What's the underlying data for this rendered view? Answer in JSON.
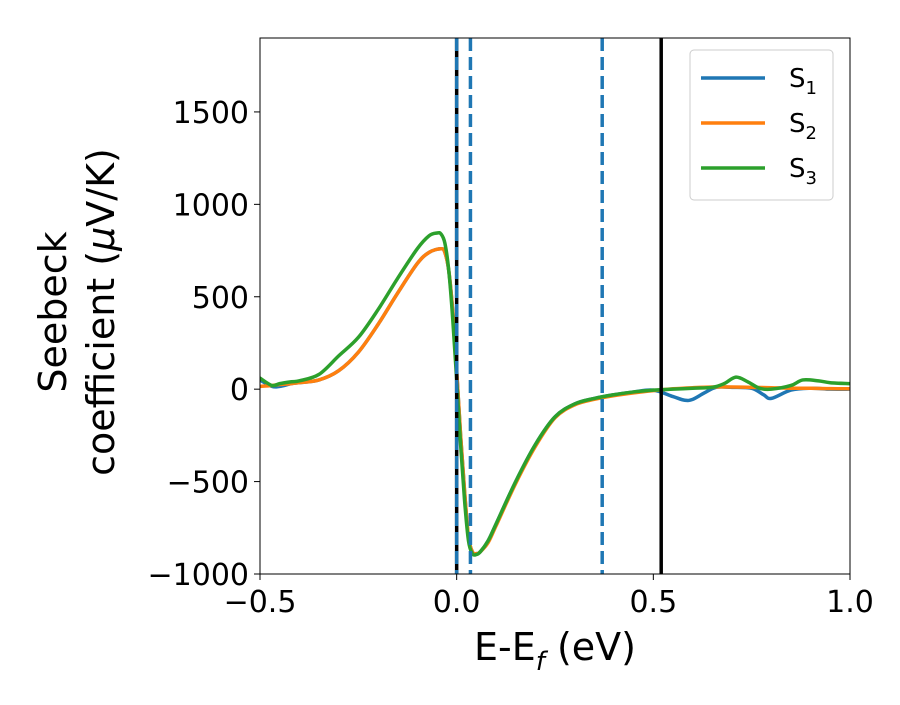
{
  "chart_data": {
    "type": "line",
    "title": "",
    "xlabel": "E-E",
    "xlabel_sub": "f",
    "xlabel_unit": " (eV)",
    "ylabel_line1": "Seebeck",
    "ylabel_line2_prefix": "coefficient  (",
    "ylabel_line2_mu": "μ",
    "ylabel_line2_suffix": "V/K)",
    "xlim": [
      -0.5,
      1.0
    ],
    "ylim": [
      -1000,
      1900
    ],
    "xticks": [
      -0.5,
      0.0,
      0.5,
      1.0
    ],
    "xtick_labels": [
      "−0.5",
      "0.0",
      "0.5",
      "1.0"
    ],
    "yticks": [
      -1000,
      -500,
      0,
      500,
      1000,
      1500
    ],
    "ytick_labels": [
      "−1000",
      "−500",
      "0",
      "500",
      "1000",
      "1500"
    ],
    "grid": false,
    "legend_position": "top-right",
    "series": [
      {
        "name": "S",
        "sub": "1",
        "color": "#1f77b4",
        "x": [
          -0.5,
          -0.47,
          -0.45,
          -0.42,
          -0.4,
          -0.35,
          -0.3,
          -0.25,
          -0.2,
          -0.15,
          -0.1,
          -0.07,
          -0.04,
          -0.03,
          -0.02,
          -0.01,
          0.0,
          0.01,
          0.02,
          0.03,
          0.04,
          0.05,
          0.06,
          0.08,
          0.1,
          0.15,
          0.2,
          0.25,
          0.3,
          0.35,
          0.4,
          0.45,
          0.5,
          0.55,
          0.58,
          0.6,
          0.63,
          0.66,
          0.7,
          0.75,
          0.78,
          0.8,
          0.85,
          0.9,
          0.95,
          1.0
        ],
        "y": [
          50,
          15,
          15,
          30,
          35,
          50,
          100,
          200,
          350,
          520,
          680,
          740,
          760,
          740,
          640,
          420,
          100,
          -250,
          -550,
          -800,
          -880,
          -890,
          -880,
          -820,
          -730,
          -500,
          -300,
          -150,
          -80,
          -50,
          -30,
          -15,
          -5,
          -40,
          -60,
          -55,
          -20,
          10,
          10,
          5,
          -30,
          -50,
          -5,
          5,
          0,
          0
        ]
      },
      {
        "name": "S",
        "sub": "2",
        "color": "#ff7f0e",
        "x": [
          -0.5,
          -0.47,
          -0.45,
          -0.42,
          -0.4,
          -0.35,
          -0.3,
          -0.25,
          -0.2,
          -0.15,
          -0.1,
          -0.07,
          -0.04,
          -0.03,
          -0.02,
          -0.01,
          0.0,
          0.01,
          0.02,
          0.03,
          0.04,
          0.05,
          0.06,
          0.08,
          0.1,
          0.15,
          0.2,
          0.25,
          0.3,
          0.35,
          0.4,
          0.45,
          0.5,
          0.55,
          0.6,
          0.65,
          0.7,
          0.75,
          0.8,
          0.85,
          0.9,
          0.95,
          1.0
        ],
        "y": [
          15,
          20,
          25,
          30,
          35,
          50,
          100,
          200,
          350,
          520,
          680,
          740,
          760,
          740,
          640,
          420,
          100,
          -250,
          -550,
          -800,
          -880,
          -890,
          -880,
          -830,
          -740,
          -510,
          -310,
          -155,
          -85,
          -55,
          -35,
          -20,
          -8,
          2,
          8,
          12,
          12,
          10,
          8,
          5,
          5,
          3,
          2
        ]
      },
      {
        "name": "S",
        "sub": "3",
        "color": "#2ca02c",
        "x": [
          -0.5,
          -0.47,
          -0.45,
          -0.42,
          -0.4,
          -0.35,
          -0.3,
          -0.25,
          -0.2,
          -0.15,
          -0.1,
          -0.07,
          -0.05,
          -0.04,
          -0.03,
          -0.02,
          -0.01,
          0.0,
          0.01,
          0.02,
          0.03,
          0.04,
          0.05,
          0.06,
          0.08,
          0.1,
          0.15,
          0.2,
          0.25,
          0.3,
          0.35,
          0.4,
          0.45,
          0.5,
          0.55,
          0.6,
          0.65,
          0.68,
          0.71,
          0.74,
          0.77,
          0.8,
          0.85,
          0.88,
          0.92,
          0.95,
          1.0
        ],
        "y": [
          60,
          20,
          30,
          40,
          45,
          80,
          180,
          280,
          430,
          600,
          760,
          830,
          845,
          840,
          790,
          640,
          380,
          50,
          -300,
          -600,
          -820,
          -890,
          -895,
          -880,
          -820,
          -730,
          -500,
          -300,
          -150,
          -80,
          -50,
          -30,
          -15,
          -5,
          0,
          5,
          10,
          30,
          65,
          40,
          5,
          0,
          20,
          50,
          45,
          35,
          30
        ]
      }
    ],
    "vertical_lines": [
      {
        "x": 0.0,
        "color": "#000000",
        "style": "solid"
      },
      {
        "x": 0.0,
        "color": "#1f77b4",
        "style": "dashed"
      },
      {
        "x": 0.035,
        "color": "#1f77b4",
        "style": "dashed"
      },
      {
        "x": 0.37,
        "color": "#1f77b4",
        "style": "dashed"
      },
      {
        "x": 0.52,
        "color": "#000000",
        "style": "solid"
      }
    ]
  }
}
